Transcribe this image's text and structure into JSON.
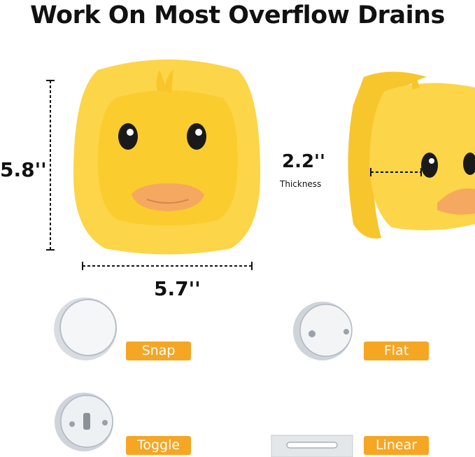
{
  "title": "Work On Most Overflow Drains",
  "dimensions": {
    "height": "5.8''",
    "width": "5.7''",
    "thickness": "2.2''",
    "thickness_label": "Thickness"
  },
  "drain_types": [
    {
      "label": "Snap"
    },
    {
      "label": "Flat"
    },
    {
      "label": "Toggle"
    },
    {
      "label": "Linear"
    }
  ],
  "colors": {
    "duck_yellow": "#fbd33a",
    "tag_orange": "#f5a623",
    "beak": "#f5a860"
  }
}
